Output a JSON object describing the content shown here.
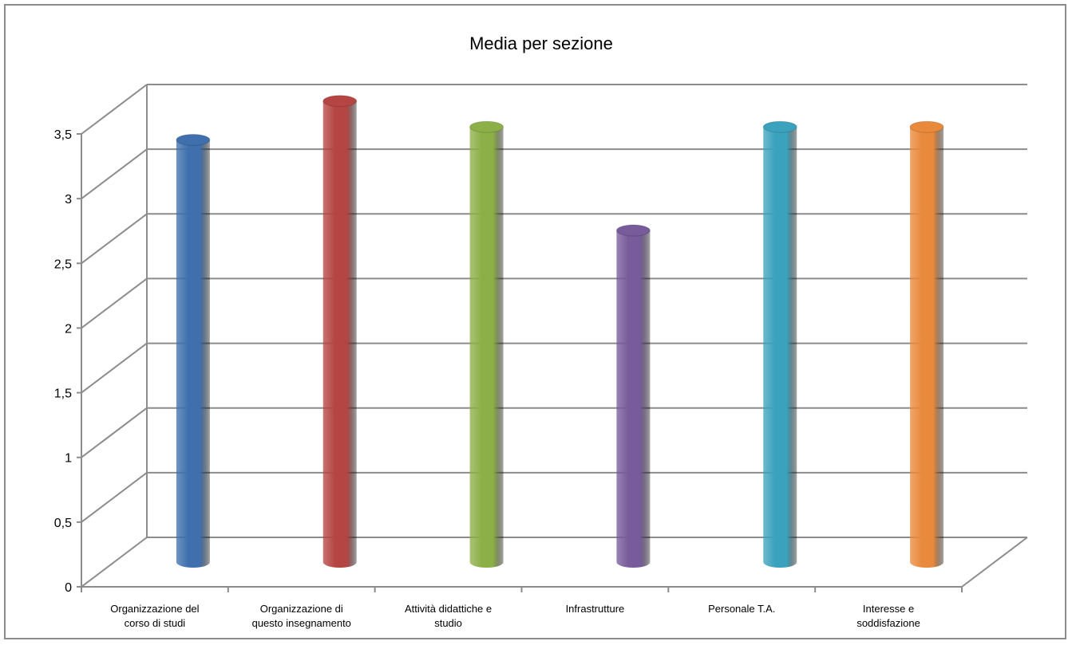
{
  "chart_data": {
    "type": "bar",
    "title": "Media per sezione",
    "categories": [
      [
        "Organizzazione del",
        "corso di studi"
      ],
      [
        "Organizzazione di",
        "questo insegnamento"
      ],
      [
        "Attività didattiche e",
        "studio"
      ],
      [
        "Infrastrutture"
      ],
      [
        "Personale T.A."
      ],
      [
        "Interesse e",
        "soddisfazione"
      ]
    ],
    "series": [
      {
        "values": [
          3.3,
          3.6,
          3.4,
          2.6,
          3.4,
          3.4
        ]
      }
    ],
    "ylim": [
      0,
      3.5
    ],
    "yticks": [
      "0",
      "0,5",
      "1",
      "1,5",
      "2",
      "2,5",
      "3",
      "3,5"
    ],
    "grid": true,
    "legend": "none",
    "colors": [
      "#3f70ad",
      "#b54543",
      "#8daf47",
      "#775b9a",
      "#3ba2bd",
      "#e9893b"
    ]
  }
}
